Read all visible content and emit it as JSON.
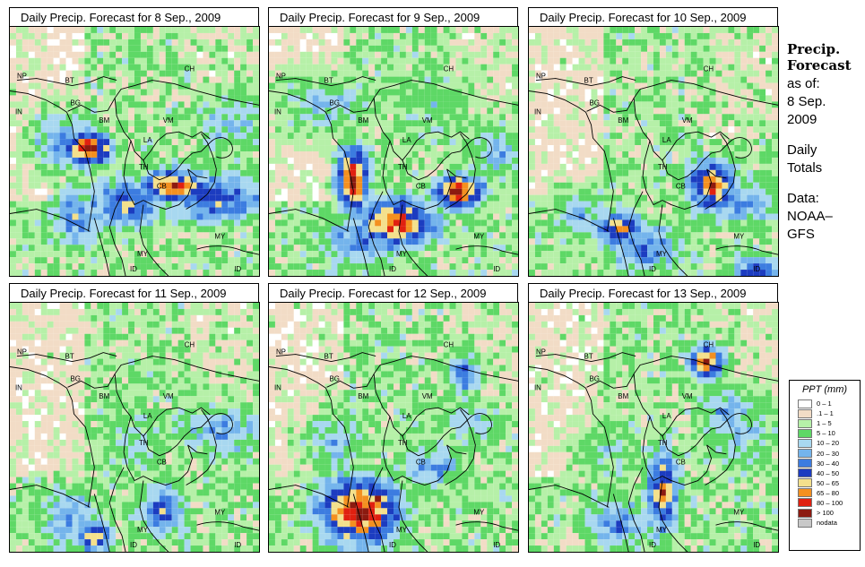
{
  "panels": [
    {
      "title": "Daily Precip. Forecast for  8 Sep., 2009"
    },
    {
      "title": "Daily Precip. Forecast for  9 Sep., 2009"
    },
    {
      "title": "Daily Precip. Forecast for  10 Sep., 2009"
    },
    {
      "title": "Daily Precip. Forecast for  11 Sep., 2009"
    },
    {
      "title": "Daily Precip. Forecast for  12 Sep., 2009"
    },
    {
      "title": "Daily Precip. Forecast for  13 Sep., 2009"
    }
  ],
  "region_labels": [
    "NP",
    "BT",
    "IN",
    "BG",
    "BM",
    "CH",
    "VM",
    "LA",
    "TH",
    "CB",
    "MY",
    "ID"
  ],
  "sidebar": {
    "title_line1": "Precip.",
    "title_line2": "Forecast",
    "asof_label": "as of:",
    "asof_line1": "8 Sep.",
    "asof_line2": "2009",
    "totals_line1": "Daily",
    "totals_line2": "Totals",
    "data_line1": "Data:",
    "data_line2": "NOAA–",
    "data_line3": "GFS"
  },
  "legend": {
    "title": "PPT (mm)",
    "items": [
      {
        "label": "0 – 1",
        "color": "#ffffff"
      },
      {
        "label": ".1 – 1",
        "color": "#f2dcc6"
      },
      {
        "label": "1 – 5",
        "color": "#b6f0a8"
      },
      {
        "label": "5 – 10",
        "color": "#5ed866"
      },
      {
        "label": "10 – 20",
        "color": "#a8d8f0"
      },
      {
        "label": "20 – 30",
        "color": "#74b4ec"
      },
      {
        "label": "30 – 40",
        "color": "#3c7ce0"
      },
      {
        "label": "40 – 50",
        "color": "#1c3cc0"
      },
      {
        "label": "50 – 65",
        "color": "#f4e08c"
      },
      {
        "label": "65 – 80",
        "color": "#f49020"
      },
      {
        "label": "80 – 100",
        "color": "#e02010"
      },
      {
        "label": "> 100",
        "color": "#8c1a10"
      },
      {
        "label": "nodata",
        "color": "#c8c8c8"
      }
    ]
  }
}
